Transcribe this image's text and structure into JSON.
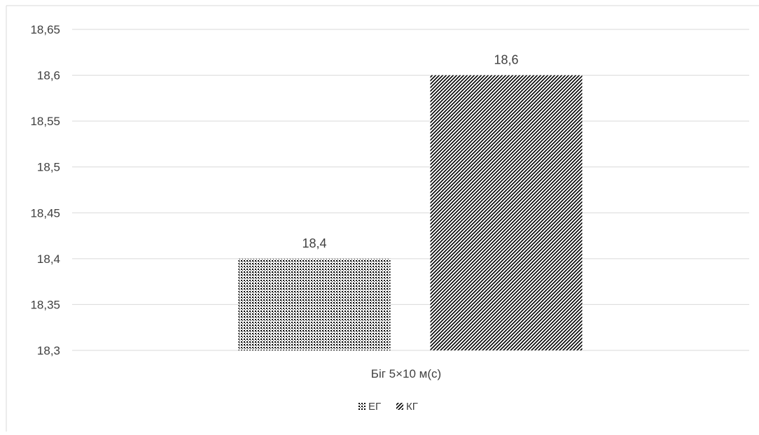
{
  "chart_data": {
    "type": "bar",
    "categories": [
      "Біг 5×10 м(с)"
    ],
    "series": [
      {
        "name": "ЕГ",
        "values": [
          18.4
        ],
        "pattern": "dots"
      },
      {
        "name": "КГ",
        "values": [
          18.6
        ],
        "pattern": "diagonal"
      }
    ],
    "data_labels": [
      "18,4",
      "18,6"
    ],
    "y_ticks": [
      "18,3",
      "18,35",
      "18,4",
      "18,45",
      "18,5",
      "18,55",
      "18,6",
      "18,65"
    ],
    "ylim": [
      18.3,
      18.65
    ],
    "grid": true,
    "legend_position": "bottom",
    "title": "",
    "xlabel": "",
    "ylabel": "",
    "colors": {
      "gridline": "#d9d9d9",
      "text": "#404040",
      "bar_ink": "#000000",
      "border": "#d9d9d9"
    }
  }
}
